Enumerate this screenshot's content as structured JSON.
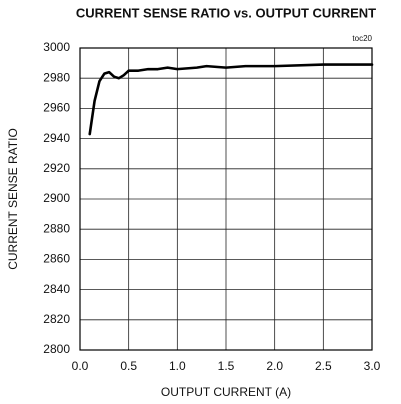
{
  "chart_data": {
    "type": "line",
    "title": "CURRENT SENSE RATIO vs. OUTPUT CURRENT",
    "annotation": "toc20",
    "x_label": "OUTPUT CURRENT (A)",
    "y_label": "CURRENT SENSE RATIO",
    "x": [
      0.1,
      0.15,
      0.2,
      0.25,
      0.3,
      0.35,
      0.4,
      0.45,
      0.5,
      0.6,
      0.7,
      0.8,
      0.9,
      1.0,
      1.2,
      1.3,
      1.5,
      1.7,
      2.0,
      2.5,
      3.0
    ],
    "series": [
      {
        "color": "#000000",
        "values": [
          2943,
          2965,
          2978,
          2983,
          2984,
          2981,
          2980,
          2982,
          2985,
          2985,
          2986,
          2986,
          2987,
          2986,
          2987,
          2988,
          2987,
          2988,
          2988,
          2989,
          2989
        ]
      }
    ],
    "xlim": [
      0,
      3
    ],
    "ylim": [
      2800,
      3000
    ],
    "xticks": [
      {
        "value": 0,
        "label": "0.0"
      },
      0.5,
      {
        "value": 1,
        "label": "1.0"
      },
      1.5,
      {
        "value": 2,
        "label": "2.0"
      },
      2.5,
      {
        "value": 3,
        "label": "3.0"
      }
    ],
    "yticks": [
      2800,
      2820,
      2840,
      2860,
      2880,
      2900,
      2920,
      2940,
      2960,
      2980,
      3000
    ],
    "grid": true
  }
}
